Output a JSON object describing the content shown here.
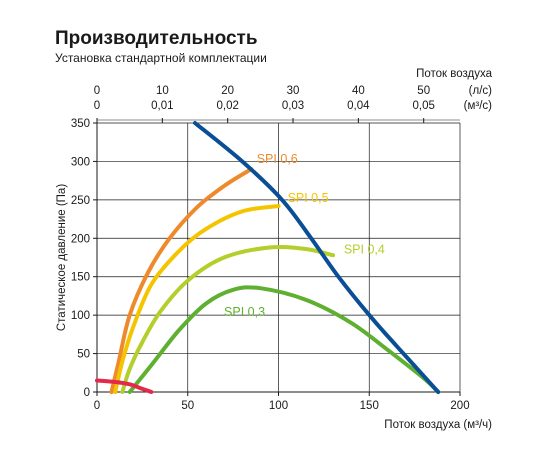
{
  "header": {
    "title": "Производительность",
    "subtitle": "Установка стандартной комплектации"
  },
  "chart_data": {
    "type": "line",
    "title": "Производительность",
    "subtitle": "Установка стандартной комплектации",
    "xlabel": "Поток воздуха (м³/ч)",
    "ylabel": "Статическое давление (Па)",
    "xlim": [
      0,
      200
    ],
    "ylim": [
      0,
      350
    ],
    "x_ticks": [
      "0",
      "50",
      "100",
      "150",
      "200"
    ],
    "y_ticks": [
      "0",
      "50",
      "100",
      "150",
      "200",
      "250",
      "300",
      "350"
    ],
    "top_axis_title": "Поток воздуха",
    "top_axis_ls": {
      "unit": "(л/с)",
      "ticks": [
        "0",
        "10",
        "20",
        "30",
        "40",
        "50"
      ],
      "values": [
        0,
        10,
        20,
        30,
        40,
        50
      ]
    },
    "top_axis_m3s": {
      "unit": "(м³/с)",
      "ticks": [
        "0",
        "0,01",
        "0,02",
        "0,03",
        "0,04",
        "0,05"
      ],
      "values": [
        0,
        0.01,
        0.02,
        0.03,
        0.04,
        0.05
      ]
    },
    "grid": true,
    "series": [
      {
        "name": "SPI 0,6",
        "color": "#ee8a2c",
        "label_pos": [
          88,
          298
        ],
        "points": [
          [
            8,
            0
          ],
          [
            12,
            40
          ],
          [
            18,
            100
          ],
          [
            28,
            155
          ],
          [
            40,
            200
          ],
          [
            55,
            240
          ],
          [
            70,
            268
          ],
          [
            85,
            290
          ]
        ]
      },
      {
        "name": "SPI 0,5",
        "color": "#f5c400",
        "label_pos": [
          105,
          247
        ],
        "points": [
          [
            10,
            0
          ],
          [
            14,
            40
          ],
          [
            20,
            85
          ],
          [
            30,
            140
          ],
          [
            45,
            183
          ],
          [
            60,
            212
          ],
          [
            80,
            235
          ],
          [
            100,
            242
          ]
        ]
      },
      {
        "name": "SPI 0,4",
        "color": "#b4cf2c",
        "label_pos": [
          136,
          180
        ],
        "points": [
          [
            14,
            0
          ],
          [
            18,
            30
          ],
          [
            25,
            65
          ],
          [
            35,
            105
          ],
          [
            50,
            145
          ],
          [
            70,
            175
          ],
          [
            95,
            188
          ],
          [
            115,
            186
          ],
          [
            130,
            178
          ]
        ]
      },
      {
        "name": "SPI 0,3",
        "color": "#5fb030",
        "label_pos": [
          70,
          99
        ],
        "points": [
          [
            18,
            0
          ],
          [
            30,
            35
          ],
          [
            45,
            80
          ],
          [
            60,
            115
          ],
          [
            75,
            133
          ],
          [
            90,
            135
          ],
          [
            115,
            120
          ],
          [
            140,
            90
          ],
          [
            160,
            55
          ],
          [
            180,
            18
          ],
          [
            188,
            0
          ]
        ]
      },
      {
        "name": "",
        "color": "#0a4f95",
        "label_pos": null,
        "points": [
          [
            54,
            350
          ],
          [
            80,
            300
          ],
          [
            102,
            250
          ],
          [
            118,
            200
          ],
          [
            133,
            150
          ],
          [
            150,
            100
          ],
          [
            165,
            60
          ],
          [
            188,
            0
          ]
        ]
      },
      {
        "name": "",
        "color": "#e3284a",
        "label_pos": null,
        "points": [
          [
            0,
            15
          ],
          [
            10,
            13
          ],
          [
            18,
            10
          ],
          [
            24,
            5
          ],
          [
            30,
            0
          ]
        ]
      }
    ]
  }
}
